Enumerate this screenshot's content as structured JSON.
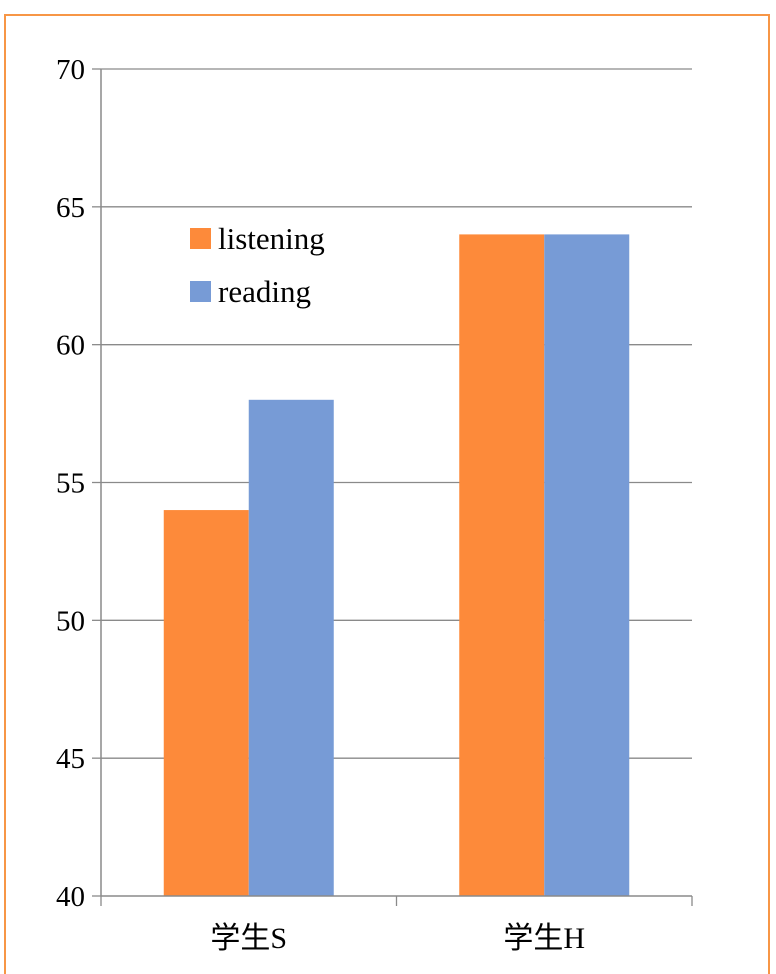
{
  "chart_data": {
    "type": "bar",
    "categories": [
      "学生S",
      "学生H"
    ],
    "series": [
      {
        "name": "listening",
        "color": "#fd8a3a",
        "values": [
          54,
          64
        ]
      },
      {
        "name": "reading",
        "color": "#779bd6",
        "values": [
          58,
          64
        ]
      }
    ],
    "ylim": [
      40,
      70
    ],
    "yticks": [
      40,
      45,
      50,
      55,
      60,
      65,
      70
    ],
    "grid": true,
    "legend": "top-left",
    "title": "",
    "xlabel": "",
    "ylabel": ""
  }
}
